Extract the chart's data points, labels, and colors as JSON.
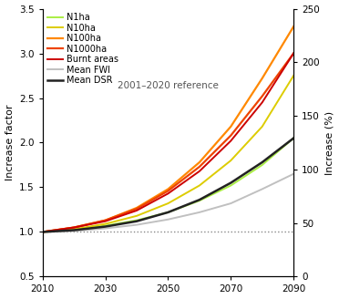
{
  "title": "",
  "xlabel": "",
  "ylabel_left": "Increase factor",
  "ylabel_right": "Increase (%)",
  "xlim": [
    2010,
    2090
  ],
  "ylim_left": [
    0.5,
    3.5
  ],
  "ylim_right": [
    0,
    250
  ],
  "xticks": [
    2010,
    2030,
    2050,
    2070,
    2090
  ],
  "yticks_left": [
    0.5,
    1.0,
    1.5,
    2.0,
    2.5,
    3.0,
    3.5
  ],
  "yticks_right": [
    0,
    50,
    100,
    150,
    200,
    250
  ],
  "reference_text": "2001–2020 reference",
  "series": {
    "N1ha": {
      "color": "#aaee44",
      "lw": 1.4,
      "values": [
        1.0,
        1.02,
        1.07,
        1.13,
        1.22,
        1.35,
        1.52,
        1.75,
        2.05
      ]
    },
    "N10ha": {
      "color": "#ddcc00",
      "lw": 1.4,
      "values": [
        1.0,
        1.03,
        1.09,
        1.18,
        1.32,
        1.52,
        1.8,
        2.18,
        2.75
      ]
    },
    "N100ha": {
      "color": "#ff8800",
      "lw": 1.6,
      "values": [
        1.0,
        1.05,
        1.13,
        1.27,
        1.48,
        1.78,
        2.18,
        2.72,
        3.3
      ]
    },
    "N1000ha": {
      "color": "#ee4400",
      "lw": 1.6,
      "values": [
        1.0,
        1.05,
        1.13,
        1.26,
        1.46,
        1.73,
        2.08,
        2.52,
        3.0
      ]
    },
    "Burnt areas": {
      "color": "#cc0000",
      "lw": 1.4,
      "values": [
        1.0,
        1.05,
        1.12,
        1.24,
        1.43,
        1.68,
        2.02,
        2.45,
        3.0
      ]
    },
    "Mean FWI": {
      "color": "#c0c0c0",
      "lw": 1.4,
      "values": [
        1.0,
        1.01,
        1.04,
        1.08,
        1.14,
        1.22,
        1.32,
        1.48,
        1.65
      ]
    },
    "Mean DSR": {
      "color": "#222222",
      "lw": 1.8,
      "values": [
        1.0,
        1.02,
        1.06,
        1.12,
        1.22,
        1.36,
        1.55,
        1.78,
        2.05
      ]
    }
  },
  "x_points": [
    2010,
    2020,
    2030,
    2040,
    2050,
    2060,
    2070,
    2080,
    2090
  ],
  "background_color": "#ffffff",
  "legend_order": [
    "N1ha",
    "N10ha",
    "N100ha",
    "N1000ha",
    "Burnt areas",
    "Mean FWI",
    "Mean DSR"
  ]
}
